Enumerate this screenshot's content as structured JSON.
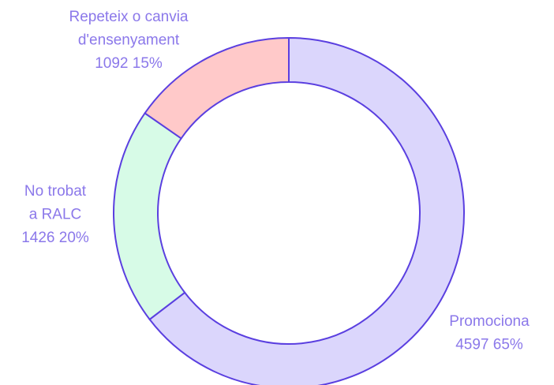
{
  "chart_data": {
    "type": "donut",
    "categories": [
      [
        "Promociona"
      ],
      [
        "No trobat",
        "a RALC"
      ],
      [
        "Repeteix o canvia",
        "d'ensenyament"
      ]
    ],
    "values": [
      4597,
      1426,
      1092
    ],
    "value_labels": [
      "4597 65%",
      "1426 20%",
      "1092 15%"
    ],
    "colors": [
      "#dbd6fc",
      "#d7fbe7",
      "#ffc9c9"
    ],
    "stroke": "#5a3fe0"
  }
}
